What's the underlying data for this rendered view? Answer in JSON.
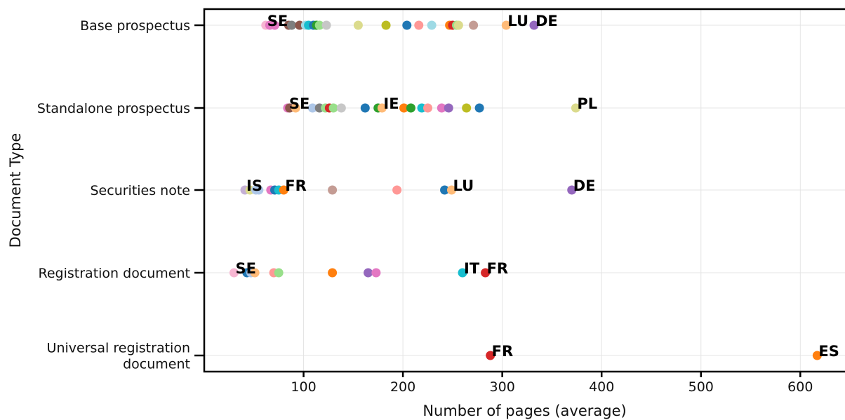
{
  "chart_data": {
    "type": "scatter",
    "xlabel": "Number of pages (average)",
    "ylabel": "Document Type",
    "xlim": [
      0,
      645
    ],
    "xticks": [
      100,
      200,
      300,
      400,
      500,
      600
    ],
    "grid": true,
    "categories": [
      [
        "Base prospectus"
      ],
      [
        "Standalone prospectus"
      ],
      [
        "Securities note"
      ],
      [
        "Registration document"
      ],
      [
        "Universal registration",
        "document"
      ]
    ],
    "points": [
      {
        "cat": 0,
        "x": 62,
        "color": "#f7b6d2"
      },
      {
        "cat": 0,
        "x": 66,
        "color": "#e377c2"
      },
      {
        "cat": 0,
        "x": 71,
        "color": "#e377c2"
      },
      {
        "cat": 0,
        "x": 85,
        "color": "#8c564b"
      },
      {
        "cat": 0,
        "x": 88,
        "color": "#7f7f7f"
      },
      {
        "cat": 0,
        "x": 96,
        "color": "#8c564b"
      },
      {
        "cat": 0,
        "x": 102,
        "color": "#9edae5"
      },
      {
        "cat": 0,
        "x": 105,
        "color": "#17becf"
      },
      {
        "cat": 0,
        "x": 110,
        "color": "#1f77b4"
      },
      {
        "cat": 0,
        "x": 113,
        "color": "#2ca02c"
      },
      {
        "cat": 0,
        "x": 116,
        "color": "#98df8a"
      },
      {
        "cat": 0,
        "x": 123,
        "color": "#c7c7c7"
      },
      {
        "cat": 0,
        "x": 155,
        "color": "#dbdb8d"
      },
      {
        "cat": 0,
        "x": 183,
        "color": "#bcbd22"
      },
      {
        "cat": 0,
        "x": 204,
        "color": "#1f77b4"
      },
      {
        "cat": 0,
        "x": 216,
        "color": "#ff9896"
      },
      {
        "cat": 0,
        "x": 229,
        "color": "#9edae5"
      },
      {
        "cat": 0,
        "x": 247,
        "color": "#ff7f0e"
      },
      {
        "cat": 0,
        "x": 250,
        "color": "#d62728"
      },
      {
        "cat": 0,
        "x": 254,
        "color": "#98df8a"
      },
      {
        "cat": 0,
        "x": 256,
        "color": "#dbdb8d"
      },
      {
        "cat": 0,
        "x": 271,
        "color": "#c49c94"
      },
      {
        "cat": 0,
        "x": 304,
        "color": "#ffbb78"
      },
      {
        "cat": 0,
        "x": 332,
        "color": "#9467bd"
      },
      {
        "cat": 1,
        "x": 84,
        "color": "#e377c2"
      },
      {
        "cat": 1,
        "x": 86,
        "color": "#8c564b"
      },
      {
        "cat": 1,
        "x": 92,
        "color": "#ffbb78"
      },
      {
        "cat": 1,
        "x": 109,
        "color": "#aec7e8"
      },
      {
        "cat": 1,
        "x": 116,
        "color": "#7f7f7f"
      },
      {
        "cat": 1,
        "x": 122,
        "color": "#98df8a"
      },
      {
        "cat": 1,
        "x": 126,
        "color": "#d62728"
      },
      {
        "cat": 1,
        "x": 130,
        "color": "#98df8a"
      },
      {
        "cat": 1,
        "x": 138,
        "color": "#c7c7c7"
      },
      {
        "cat": 1,
        "x": 162,
        "color": "#1f77b4"
      },
      {
        "cat": 1,
        "x": 175,
        "color": "#2ca02c"
      },
      {
        "cat": 1,
        "x": 179,
        "color": "#ffbb78"
      },
      {
        "cat": 1,
        "x": 201,
        "color": "#ff7f0e"
      },
      {
        "cat": 1,
        "x": 208,
        "color": "#2ca02c"
      },
      {
        "cat": 1,
        "x": 219,
        "color": "#17becf"
      },
      {
        "cat": 1,
        "x": 225,
        "color": "#ff9896"
      },
      {
        "cat": 1,
        "x": 239,
        "color": "#e377c2"
      },
      {
        "cat": 1,
        "x": 246,
        "color": "#9467bd"
      },
      {
        "cat": 1,
        "x": 264,
        "color": "#bcbd22"
      },
      {
        "cat": 1,
        "x": 277,
        "color": "#1f77b4"
      },
      {
        "cat": 1,
        "x": 374,
        "color": "#dbdb8d"
      },
      {
        "cat": 2,
        "x": 41,
        "color": "#c5b0d5"
      },
      {
        "cat": 2,
        "x": 46,
        "color": "#dbdb8d"
      },
      {
        "cat": 2,
        "x": 52,
        "color": "#aec7e8"
      },
      {
        "cat": 2,
        "x": 55,
        "color": "#aec7e8"
      },
      {
        "cat": 2,
        "x": 67,
        "color": "#e377c2"
      },
      {
        "cat": 2,
        "x": 71,
        "color": "#1f77b4"
      },
      {
        "cat": 2,
        "x": 75,
        "color": "#17becf"
      },
      {
        "cat": 2,
        "x": 80,
        "color": "#ff7f0e"
      },
      {
        "cat": 2,
        "x": 129,
        "color": "#c49c94"
      },
      {
        "cat": 2,
        "x": 194,
        "color": "#ff9896"
      },
      {
        "cat": 2,
        "x": 242,
        "color": "#1f77b4"
      },
      {
        "cat": 2,
        "x": 249,
        "color": "#ffbb78"
      },
      {
        "cat": 2,
        "x": 370,
        "color": "#9467bd"
      },
      {
        "cat": 3,
        "x": 30,
        "color": "#f7b6d2"
      },
      {
        "cat": 3,
        "x": 43,
        "color": "#1f77b4"
      },
      {
        "cat": 3,
        "x": 47,
        "color": "#aec7e8"
      },
      {
        "cat": 3,
        "x": 51,
        "color": "#ffbb78"
      },
      {
        "cat": 3,
        "x": 70,
        "color": "#ff9896"
      },
      {
        "cat": 3,
        "x": 75,
        "color": "#98df8a"
      },
      {
        "cat": 3,
        "x": 129,
        "color": "#ff7f0e"
      },
      {
        "cat": 3,
        "x": 165,
        "color": "#9467bd"
      },
      {
        "cat": 3,
        "x": 173,
        "color": "#e377c2"
      },
      {
        "cat": 3,
        "x": 260,
        "color": "#17becf"
      },
      {
        "cat": 3,
        "x": 283,
        "color": "#d62728"
      },
      {
        "cat": 4,
        "x": 288,
        "color": "#d62728"
      },
      {
        "cat": 4,
        "x": 617,
        "color": "#ff7f0e"
      }
    ],
    "annotations": [
      {
        "cat": 0,
        "x": 62,
        "text": "SE"
      },
      {
        "cat": 0,
        "x": 304,
        "text": "LU"
      },
      {
        "cat": 0,
        "x": 332,
        "text": "DE"
      },
      {
        "cat": 1,
        "x": 84,
        "text": "SE"
      },
      {
        "cat": 1,
        "x": 179,
        "text": "IE"
      },
      {
        "cat": 1,
        "x": 374,
        "text": "PL"
      },
      {
        "cat": 2,
        "x": 41,
        "text": "IS"
      },
      {
        "cat": 2,
        "x": 80,
        "text": "FR"
      },
      {
        "cat": 2,
        "x": 249,
        "text": "LU"
      },
      {
        "cat": 2,
        "x": 370,
        "text": "DE"
      },
      {
        "cat": 3,
        "x": 30,
        "text": "SE"
      },
      {
        "cat": 3,
        "x": 260,
        "text": "IT"
      },
      {
        "cat": 3,
        "x": 283,
        "text": "FR"
      },
      {
        "cat": 4,
        "x": 288,
        "text": "FR"
      },
      {
        "cat": 4,
        "x": 617,
        "text": "ES"
      }
    ]
  }
}
